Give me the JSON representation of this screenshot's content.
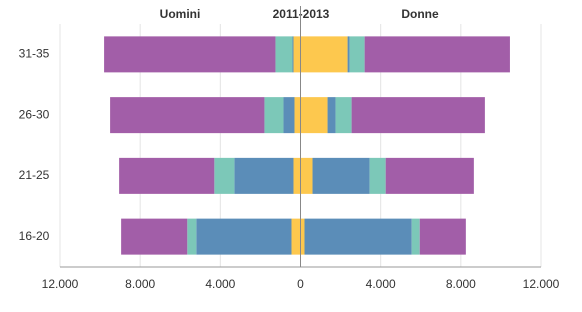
{
  "chart_data": {
    "type": "diverging-stacked-bar",
    "title": "2011-2013",
    "categories": [
      "31-35",
      "26-30",
      "21-25",
      "16-20"
    ],
    "groups": [
      {
        "label": "Uomini",
        "segments": [
          {
            "color": "#fdc84e",
            "values": [
              -350,
              -300,
              -350,
              -450
            ]
          },
          {
            "color": "#5b8db8",
            "values": [
              -50,
              -550,
              -2950,
              -4750
            ]
          },
          {
            "color": "#7cc8b8",
            "values": [
              -850,
              -950,
              -1000,
              -450
            ]
          },
          {
            "color": "#a25ea8",
            "values": [
              -8550,
              -7700,
              -4750,
              -3300
            ]
          }
        ]
      },
      {
        "label": "Donne",
        "segments": [
          {
            "color": "#fdc84e",
            "values": [
              2350,
              1350,
              600,
              200
            ]
          },
          {
            "color": "#5b8db8",
            "values": [
              100,
              400,
              2850,
              5350
            ]
          },
          {
            "color": "#7cc8b8",
            "values": [
              750,
              800,
              800,
              400
            ]
          },
          {
            "color": "#a25ea8",
            "values": [
              7250,
              6650,
              4400,
              2300
            ]
          }
        ]
      }
    ],
    "xlim": [
      -12000,
      12000
    ],
    "xticks": [
      {
        "value": -12000,
        "label": "12.000"
      },
      {
        "value": -8000,
        "label": "8.000"
      },
      {
        "value": -4000,
        "label": "4.000"
      },
      0,
      {
        "value": 4000,
        "label": "4.000"
      },
      {
        "value": 8000,
        "label": "8.000"
      },
      {
        "value": 12000,
        "label": "12.000"
      }
    ],
    "grid": true
  }
}
